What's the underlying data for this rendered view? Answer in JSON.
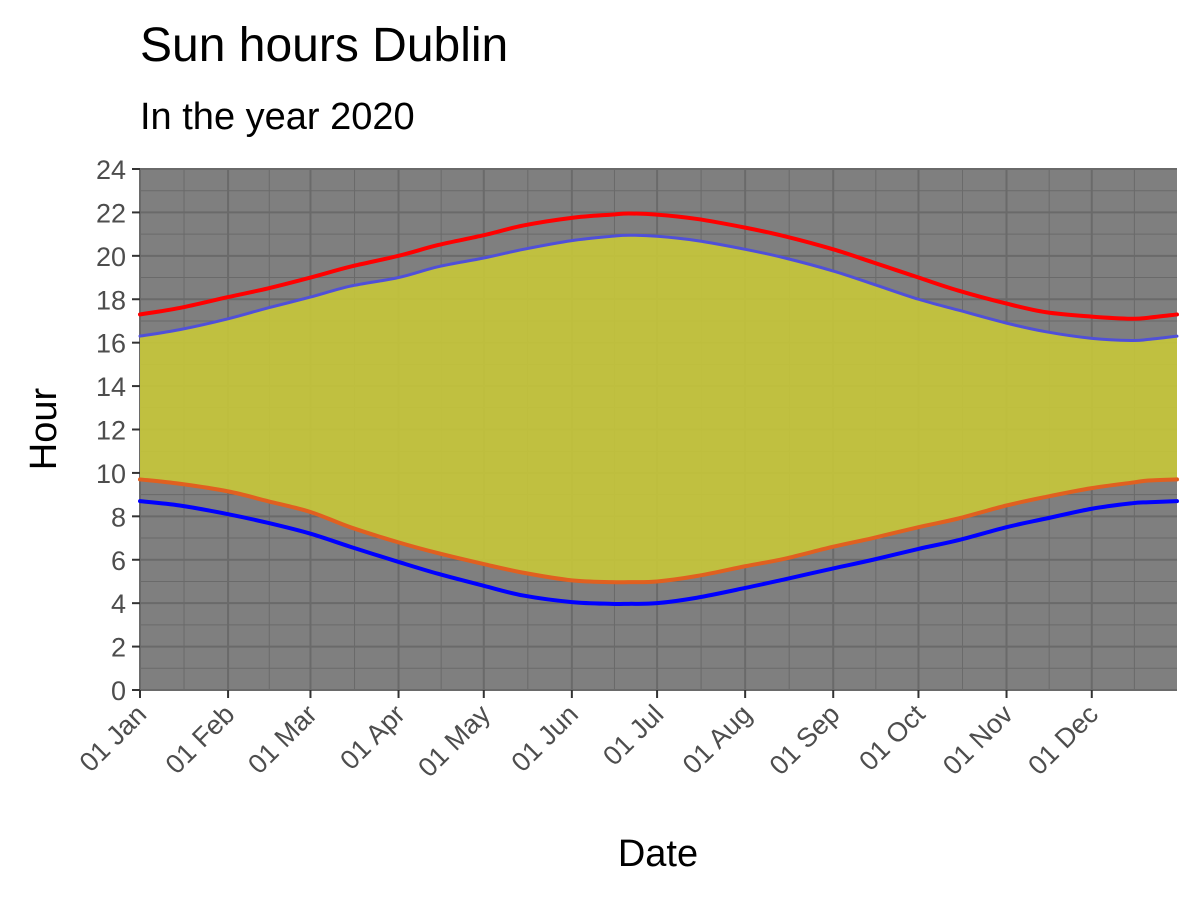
{
  "chart_data": {
    "type": "area",
    "title": "Sun hours Dublin",
    "subtitle": "In the year 2020",
    "xlabel": "Date",
    "ylabel": "Hour",
    "xlim": [
      "2020-01-01",
      "2020-12-31"
    ],
    "ylim": [
      0,
      24
    ],
    "y_ticks": [
      0,
      2,
      4,
      6,
      8,
      10,
      12,
      14,
      16,
      18,
      20,
      22,
      24
    ],
    "x_ticks": [
      {
        "date": "2020-01-01",
        "label": "01 Jan"
      },
      {
        "date": "2020-02-01",
        "label": "01 Feb"
      },
      {
        "date": "2020-03-01",
        "label": "01 Mar"
      },
      {
        "date": "2020-04-01",
        "label": "01 Apr"
      },
      {
        "date": "2020-05-01",
        "label": "01 May"
      },
      {
        "date": "2020-06-01",
        "label": "01 Jun"
      },
      {
        "date": "2020-07-01",
        "label": "01 Jul"
      },
      {
        "date": "2020-08-01",
        "label": "01 Aug"
      },
      {
        "date": "2020-09-01",
        "label": "01 Sep"
      },
      {
        "date": "2020-10-01",
        "label": "01 Oct"
      },
      {
        "date": "2020-11-01",
        "label": "01 Nov"
      },
      {
        "date": "2020-12-01",
        "label": "01 Dec"
      }
    ],
    "grid": true,
    "panel_background": "#7f7f7f",
    "grid_color": "#6a6a6a",
    "fill": {
      "between": [
        "sunrise",
        "sunset"
      ],
      "color": "#c8c83a",
      "opacity": 0.9
    },
    "x": [
      "2020-01-01",
      "2020-01-15",
      "2020-02-01",
      "2020-02-15",
      "2020-03-01",
      "2020-03-15",
      "2020-04-01",
      "2020-04-15",
      "2020-05-01",
      "2020-05-15",
      "2020-06-01",
      "2020-06-15",
      "2020-06-21",
      "2020-07-01",
      "2020-07-15",
      "2020-08-01",
      "2020-08-15",
      "2020-09-01",
      "2020-09-15",
      "2020-10-01",
      "2020-10-15",
      "2020-11-01",
      "2020-11-15",
      "2020-12-01",
      "2020-12-15",
      "2020-12-21",
      "2020-12-31"
    ],
    "series": [
      {
        "key": "sunset",
        "color": "#5050d8",
        "width": 3,
        "values": [
          16.3,
          16.6,
          17.1,
          17.6,
          18.1,
          18.6,
          19.0,
          19.5,
          19.9,
          20.3,
          20.7,
          20.9,
          20.95,
          20.9,
          20.7,
          20.3,
          19.9,
          19.3,
          18.7,
          18.0,
          17.5,
          16.9,
          16.5,
          16.2,
          16.1,
          16.15,
          16.3
        ]
      },
      {
        "key": "sunrise",
        "color": "#e06020",
        "width": 4,
        "values": [
          9.7,
          9.5,
          9.15,
          8.7,
          8.2,
          7.5,
          6.8,
          6.3,
          5.8,
          5.4,
          5.05,
          4.97,
          4.97,
          5.0,
          5.25,
          5.7,
          6.05,
          6.6,
          7.0,
          7.5,
          7.9,
          8.5,
          8.9,
          9.3,
          9.55,
          9.65,
          9.7
        ]
      },
      {
        "key": "dusk",
        "color": "#ff0000",
        "width": 4,
        "values": [
          17.3,
          17.6,
          18.1,
          18.5,
          19.0,
          19.5,
          20.0,
          20.5,
          20.95,
          21.4,
          21.75,
          21.9,
          21.95,
          21.9,
          21.7,
          21.3,
          20.9,
          20.3,
          19.7,
          19.0,
          18.4,
          17.8,
          17.4,
          17.2,
          17.1,
          17.15,
          17.3
        ]
      },
      {
        "key": "dawn",
        "color": "#0000ff",
        "width": 4,
        "values": [
          8.7,
          8.5,
          8.1,
          7.7,
          7.2,
          6.6,
          5.9,
          5.35,
          4.8,
          4.35,
          4.05,
          3.97,
          3.97,
          4.0,
          4.25,
          4.7,
          5.1,
          5.6,
          6.0,
          6.5,
          6.9,
          7.5,
          7.9,
          8.35,
          8.6,
          8.65,
          8.7
        ]
      }
    ]
  }
}
